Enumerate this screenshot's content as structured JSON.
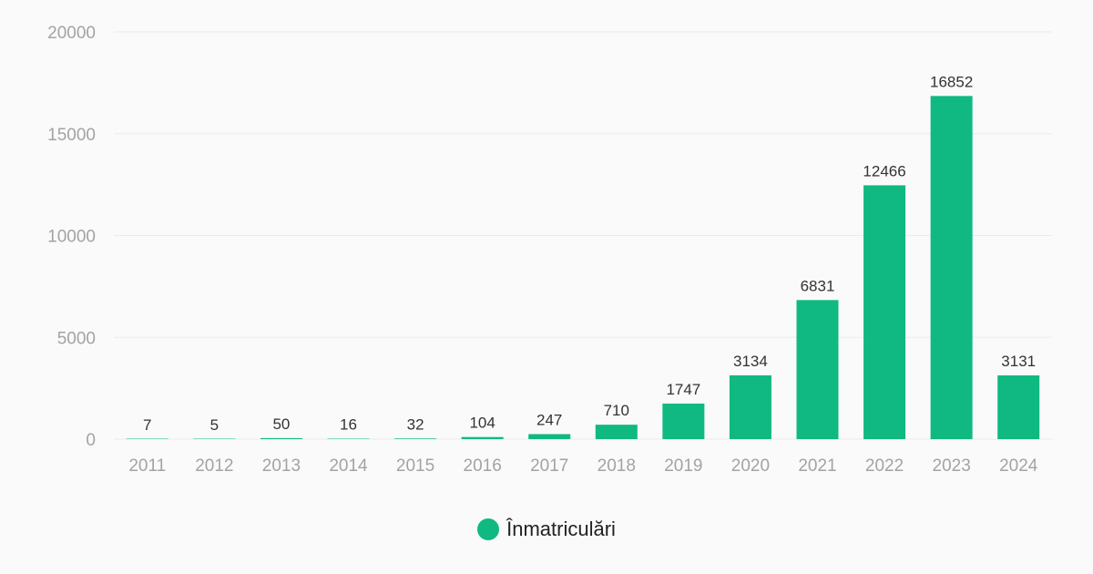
{
  "chart_data": {
    "type": "bar",
    "categories": [
      "2011",
      "2012",
      "2013",
      "2014",
      "2015",
      "2016",
      "2017",
      "2018",
      "2019",
      "2020",
      "2021",
      "2022",
      "2023",
      "2024"
    ],
    "series": [
      {
        "name": "Înmatriculări",
        "values": [
          7,
          5,
          50,
          16,
          32,
          104,
          247,
          710,
          1747,
          3134,
          6831,
          12466,
          16852,
          3131
        ]
      }
    ],
    "ylim": [
      0,
      20000
    ],
    "yticks": [
      0,
      5000,
      10000,
      15000,
      20000
    ],
    "grid": true,
    "legend_position": "bottom"
  },
  "colors": {
    "bar": "#10b981"
  }
}
